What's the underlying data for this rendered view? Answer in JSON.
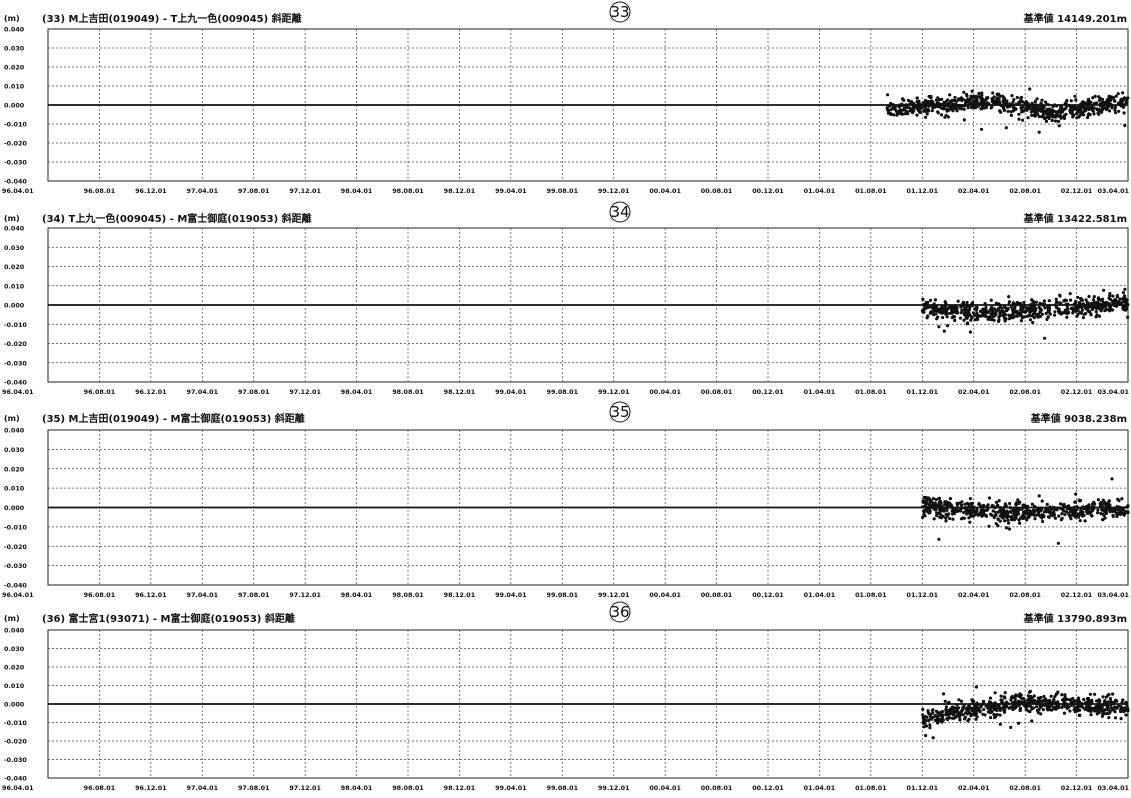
{
  "page": {
    "header_fragment": ""
  },
  "chart_data": [
    {
      "type": "scatter",
      "number_label": "33",
      "unit_label": "(m)",
      "title": "(33) M上吉田(019049) - T上九一色(009045) 斜距離",
      "reference_label": "基準値 14149.201m",
      "ylim": [
        -0.04,
        0.04
      ],
      "yticks": [
        "0.040",
        "0.030",
        "0.020",
        "0.010",
        "0.000",
        "-0.010",
        "-0.020",
        "-0.030",
        "-0.040"
      ],
      "xticks": [
        "96.04.01",
        "96.08.01",
        "96.12.01",
        "97.04.01",
        "97.08.01",
        "97.12.01",
        "98.04.01",
        "98.08.01",
        "98.12.01",
        "99.04.01",
        "99.08.01",
        "99.12.01",
        "00.04.01",
        "00.08.01",
        "00.12.01",
        "01.04.01",
        "01.08.01",
        "01.12.01",
        "02.04.01",
        "02.08.01",
        "02.12.01",
        "03.04.01"
      ],
      "grid": true,
      "series": [
        {
          "segments": [
            {
              "x": [
                16.3,
                18.4
              ],
              "y": [
                -0.002,
                0.002
              ]
            },
            {
              "x": [
                18.4,
                19.6
              ],
              "y": [
                0.002,
                -0.004
              ]
            },
            {
              "x": [
                19.6,
                21.0
              ],
              "y": [
                -0.004,
                0.002
              ]
            }
          ]
        }
      ]
    },
    {
      "type": "scatter",
      "number_label": "34",
      "unit_label": "(m)",
      "title": "(34) T上九一色(009045) - M富士御庭(019053) 斜距離",
      "reference_label": "基準値 13422.581m",
      "ylim": [
        -0.04,
        0.04
      ],
      "yticks": [
        "0.040",
        "0.030",
        "0.020",
        "0.010",
        "0.000",
        "-0.010",
        "-0.020",
        "-0.030",
        "-0.040"
      ],
      "xticks": [
        "96.04.01",
        "96.08.01",
        "96.12.01",
        "97.04.01",
        "97.08.01",
        "97.12.01",
        "98.04.01",
        "98.08.01",
        "98.12.01",
        "99.04.01",
        "99.08.01",
        "99.12.01",
        "00.04.01",
        "00.08.01",
        "00.12.01",
        "01.04.01",
        "01.08.01",
        "01.12.01",
        "02.04.01",
        "02.08.01",
        "02.12.01",
        "03.04.01"
      ],
      "grid": true,
      "series": [
        {
          "segments": [
            {
              "x": [
                17.0,
                18.6
              ],
              "y": [
                -0.002,
                -0.004
              ]
            },
            {
              "x": [
                18.6,
                21.0
              ],
              "y": [
                -0.004,
                0.001
              ]
            }
          ]
        }
      ]
    },
    {
      "type": "scatter",
      "number_label": "35",
      "unit_label": "(m)",
      "title": "(35) M上吉田(019049) - M富士御庭(019053) 斜距離",
      "reference_label": "基準値 9038.238m",
      "ylim": [
        -0.04,
        0.04
      ],
      "yticks": [
        "0.040",
        "0.030",
        "0.020",
        "0.010",
        "0.000",
        "-0.010",
        "-0.020",
        "-0.030",
        "-0.040"
      ],
      "xticks": [
        "96.04.01",
        "96.08.01",
        "96.12.01",
        "97.04.01",
        "97.08.01",
        "97.12.01",
        "98.04.01",
        "98.08.01",
        "98.12.01",
        "99.04.01",
        "99.08.01",
        "99.12.01",
        "00.04.01",
        "00.08.01",
        "00.12.01",
        "01.04.01",
        "01.08.01",
        "01.12.01",
        "02.04.01",
        "02.08.01",
        "02.12.01",
        "03.04.01"
      ],
      "grid": true,
      "series": [
        {
          "segments": [
            {
              "x": [
                17.0,
                18.6
              ],
              "y": [
                0.001,
                -0.003
              ]
            },
            {
              "x": [
                18.6,
                21.0
              ],
              "y": [
                -0.003,
                0.0
              ]
            }
          ]
        }
      ]
    },
    {
      "type": "scatter",
      "number_label": "36",
      "unit_label": "(m)",
      "title": "(36) 富士宮1(93071) - M富士御庭(019053) 斜距離",
      "reference_label": "基準値 13790.893m",
      "ylim": [
        -0.04,
        0.04
      ],
      "yticks": [
        "0.040",
        "0.030",
        "0.020",
        "0.010",
        "0.000",
        "-0.010",
        "-0.020",
        "-0.030",
        "-0.040"
      ],
      "xticks": [
        "96.04.01",
        "96.08.01",
        "96.12.01",
        "97.04.01",
        "97.08.01",
        "97.12.01",
        "98.04.01",
        "98.08.01",
        "98.12.01",
        "99.04.01",
        "99.08.01",
        "99.12.01",
        "00.04.01",
        "00.08.01",
        "00.12.01",
        "01.04.01",
        "01.08.01",
        "01.12.01",
        "02.04.01",
        "02.08.01",
        "02.12.01",
        "03.04.01"
      ],
      "grid": true,
      "series": [
        {
          "segments": [
            {
              "x": [
                17.0,
                18.8
              ],
              "y": [
                -0.008,
                0.001
              ]
            },
            {
              "x": [
                18.8,
                21.0
              ],
              "y": [
                0.001,
                -0.002
              ]
            }
          ]
        }
      ]
    }
  ]
}
